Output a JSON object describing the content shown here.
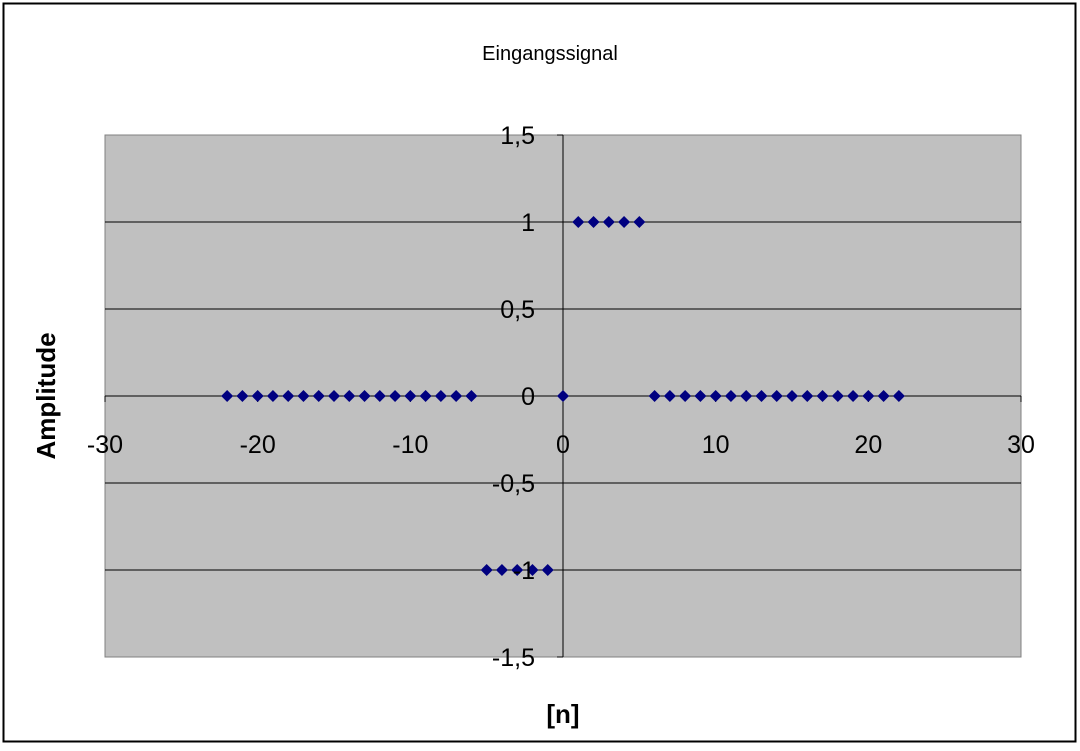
{
  "chart_data": {
    "type": "scatter",
    "title": "Eingangssignal",
    "xlabel": "[n]",
    "ylabel": "Amplitude",
    "xlim": [
      -30,
      30
    ],
    "ylim": [
      -1.5,
      1.5
    ],
    "xticks": [
      -30,
      -20,
      -10,
      0,
      10,
      20,
      30
    ],
    "yticks": [
      1.5,
      1,
      0.5,
      0,
      -0.5,
      -1,
      -1.5
    ],
    "xtick_labels": [
      "-30",
      "-20",
      "-10",
      "0",
      "10",
      "20",
      "30"
    ],
    "ytick_labels": [
      "1,5",
      "1",
      "0,5",
      "0",
      "-0,5",
      "-1",
      "-1,5"
    ],
    "grid": "horizontal",
    "legend": "none",
    "marker": "diamond",
    "colors": {
      "marker": "#000080",
      "plot_bg": "#c0c0c0",
      "frame": "#000000"
    },
    "series": [
      {
        "x": [
          -22,
          -21,
          -20,
          -19,
          -18,
          -17,
          -16,
          -15,
          -14,
          -13,
          -12,
          -11,
          -10,
          -9,
          -8,
          -7,
          -6,
          -5,
          -4,
          -3,
          -2,
          -1,
          0,
          1,
          2,
          3,
          4,
          5,
          6,
          7,
          8,
          9,
          10,
          11,
          12,
          13,
          14,
          15,
          16,
          17,
          18,
          19,
          20,
          21,
          22
        ],
        "values": [
          0,
          0,
          0,
          0,
          0,
          0,
          0,
          0,
          0,
          0,
          0,
          0,
          0,
          0,
          0,
          0,
          0,
          -1,
          -1,
          -1,
          -1,
          -1,
          0,
          1,
          1,
          1,
          1,
          1,
          0,
          0,
          0,
          0,
          0,
          0,
          0,
          0,
          0,
          0,
          0,
          0,
          0,
          0,
          0,
          0,
          0
        ]
      }
    ]
  }
}
